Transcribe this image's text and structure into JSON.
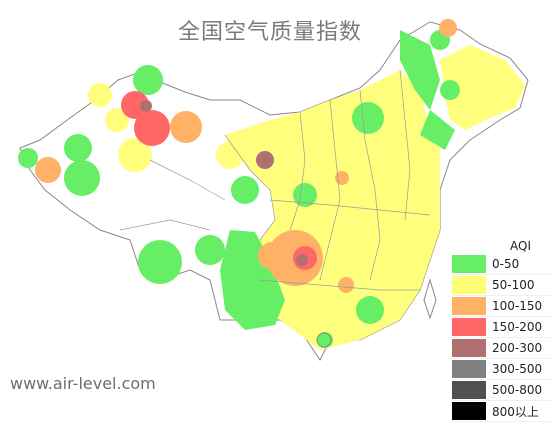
{
  "title": "全国空气质量指数",
  "legend": {
    "title": "AQI",
    "items": [
      {
        "label": "0-50",
        "color": "#66ee66"
      },
      {
        "label": "50-100",
        "color": "#ffff77"
      },
      {
        "label": "100-150",
        "color": "#ffb266"
      },
      {
        "label": "150-200",
        "color": "#ff6666"
      },
      {
        "label": "200-300",
        "color": "#b07070"
      },
      {
        "label": "300-500",
        "color": "#808080"
      },
      {
        "label": "500-800",
        "color": "#505050"
      },
      {
        "label": "800以上",
        "color": "#000000"
      }
    ]
  },
  "footer": "www.air-level.com"
}
